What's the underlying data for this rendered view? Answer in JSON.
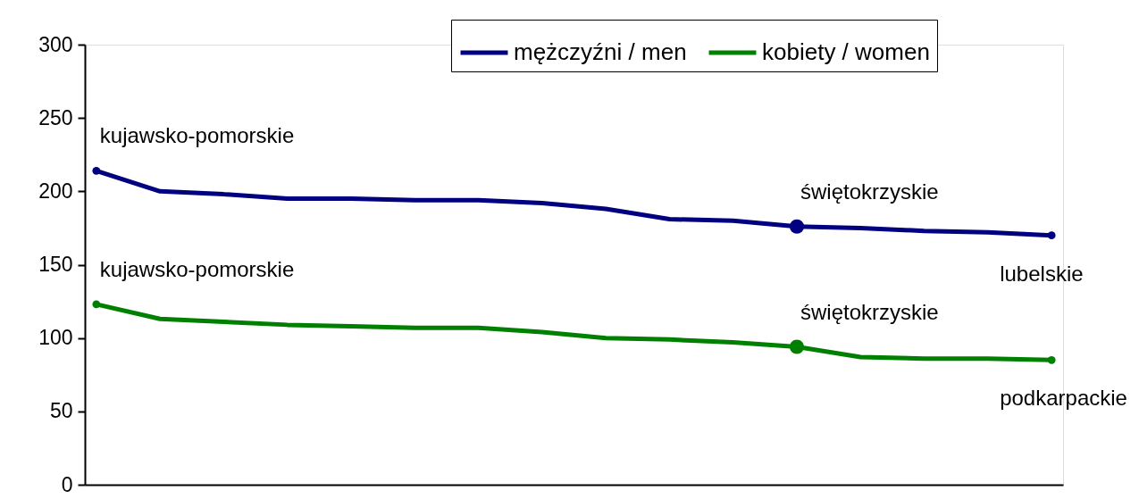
{
  "chart_data": {
    "type": "line",
    "categories": [
      null,
      null,
      null,
      null,
      null,
      null,
      null,
      null,
      null,
      null,
      null,
      null,
      null,
      null,
      null,
      null
    ],
    "series": [
      {
        "name": "mężczyźni / men",
        "color": "#000080",
        "values": [
          214,
          200,
          198,
          195,
          195,
          194,
          194,
          192,
          188,
          181,
          180,
          176,
          175,
          173,
          172,
          170
        ]
      },
      {
        "name": "kobiety / women",
        "color": "#008000",
        "values": [
          123,
          113,
          111,
          109,
          108,
          107,
          107,
          104,
          100,
          99,
          97,
          94,
          87,
          86,
          86,
          85
        ]
      },
      {
        "type": "bubble",
        "color": "#000080",
        "values": [
          214,
          null,
          null,
          null,
          null,
          null,
          null,
          null,
          null,
          null,
          null,
          176,
          null,
          null,
          null,
          170
        ],
        "sizes": [
          0.3,
          null,
          null,
          null,
          null,
          null,
          null,
          null,
          null,
          null,
          null,
          1,
          null,
          null,
          null,
          0.3
        ]
      },
      {
        "type": "bubble",
        "color": "#008000",
        "values": [
          123,
          null,
          null,
          null,
          null,
          null,
          null,
          null,
          null,
          null,
          null,
          94,
          null,
          null,
          null,
          85
        ],
        "sizes": [
          0.3,
          null,
          null,
          null,
          null,
          null,
          null,
          null,
          null,
          null,
          null,
          1,
          null,
          null,
          null,
          0.3
        ]
      }
    ],
    "ylim": [
      0,
      300
    ],
    "yticks": [
      0,
      50,
      100,
      150,
      200,
      250,
      300
    ],
    "grid": false,
    "legend": "top",
    "line_style": "solid",
    "tick_labels": "y",
    "annotations": [
      "kujawsko-pomorskie",
      "świętokrzyskie",
      "lubelskie",
      "kujawsko-pomorskie",
      "świętokrzyskie",
      "podkarpackie"
    ]
  }
}
